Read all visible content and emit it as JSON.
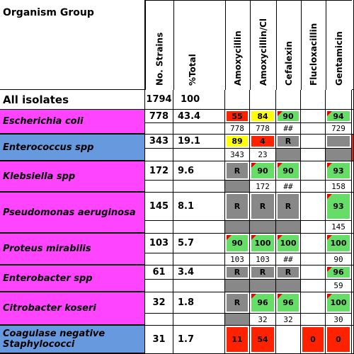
{
  "table": {
    "headers": {
      "organism": "Organism Group",
      "strains": "No. Strains",
      "pct": "%Total",
      "drugs": [
        "Amoxycillin",
        "Amoxycillin/Cl",
        "Cefalexin",
        "Flucloxacillin",
        "Gentamicin"
      ]
    },
    "all": {
      "name": "All isolates",
      "strains": 1794,
      "pct": 100
    },
    "rows": [
      {
        "name": "Escherichia coli",
        "group": "magenta",
        "strains": 778,
        "pct": 43.4,
        "cells": [
          {
            "text": "55",
            "fill": "red"
          },
          {
            "text": "84",
            "fill": "yellow"
          },
          {
            "text": "90",
            "fill": "green"
          },
          {
            "text": "",
            "fill": "none"
          },
          {
            "text": "94",
            "fill": "green"
          }
        ],
        "counts": [
          "778",
          "778",
          "##",
          "",
          "729"
        ]
      },
      {
        "name": "Enterococcus spp",
        "group": "blue",
        "strains": 343,
        "pct": 19.1,
        "cells": [
          {
            "text": "89",
            "fill": "yellow"
          },
          {
            "text": "4",
            "fill": "red"
          },
          {
            "text": "R",
            "fill": "gray"
          },
          {
            "text": "",
            "fill": "none"
          },
          {
            "text": "",
            "fill": "gray"
          }
        ],
        "counts": [
          "343",
          "23",
          "",
          "",
          ""
        ]
      },
      {
        "name": "Klebsiella spp",
        "group": "magenta",
        "strains": 172,
        "pct": 9.6,
        "cells": [
          {
            "text": "R",
            "fill": "gray"
          },
          {
            "text": "90",
            "fill": "green"
          },
          {
            "text": "90",
            "fill": "green"
          },
          {
            "text": "",
            "fill": "none"
          },
          {
            "text": "93",
            "fill": "green"
          }
        ],
        "counts": [
          "",
          "172",
          "##",
          "",
          "158"
        ]
      },
      {
        "name": "Pseudomonas aeruginosa",
        "group": "magenta",
        "strains": 145,
        "pct": 8.1,
        "cells": [
          {
            "text": "R",
            "fill": "gray"
          },
          {
            "text": "R",
            "fill": "gray"
          },
          {
            "text": "R",
            "fill": "gray"
          },
          {
            "text": "",
            "fill": "none"
          },
          {
            "text": "93",
            "fill": "green"
          }
        ],
        "counts": [
          "",
          "",
          "",
          "",
          "145"
        ]
      },
      {
        "name": "Proteus mirabilis",
        "group": "magenta",
        "strains": 103,
        "pct": 5.7,
        "cells": [
          {
            "text": "90",
            "fill": "green"
          },
          {
            "text": "100",
            "fill": "green"
          },
          {
            "text": "100",
            "fill": "green"
          },
          {
            "text": "",
            "fill": "none"
          },
          {
            "text": "100",
            "fill": "green"
          }
        ],
        "counts": [
          "103",
          "103",
          "##",
          "",
          "90"
        ]
      },
      {
        "name": "Enterobacter spp",
        "group": "magenta",
        "strains": 61,
        "pct": 3.4,
        "cells": [
          {
            "text": "R",
            "fill": "gray"
          },
          {
            "text": "R",
            "fill": "gray"
          },
          {
            "text": "R",
            "fill": "gray"
          },
          {
            "text": "",
            "fill": "none"
          },
          {
            "text": "96",
            "fill": "green"
          }
        ],
        "counts": [
          "",
          "",
          "",
          "",
          "59"
        ]
      },
      {
        "name": "Citrobacter koseri",
        "group": "magenta",
        "strains": 32,
        "pct": 1.8,
        "cells": [
          {
            "text": "R",
            "fill": "gray"
          },
          {
            "text": "96",
            "fill": "green"
          },
          {
            "text": "96",
            "fill": "green"
          },
          {
            "text": "",
            "fill": "none"
          },
          {
            "text": "100",
            "fill": "green"
          }
        ],
        "counts": [
          "",
          "32",
          "32",
          "",
          "30"
        ]
      },
      {
        "name": "Coagulase negative Staphylococci",
        "group": "blue",
        "strains": 31,
        "pct": 1.7,
        "cells": [
          {
            "text": "11",
            "fill": "red"
          },
          {
            "text": "54",
            "fill": "red"
          },
          {
            "text": "",
            "fill": "none"
          },
          {
            "text": "0",
            "fill": "red"
          },
          {
            "text": "0",
            "fill": "red"
          }
        ],
        "counts": [
          "",
          "",
          "",
          "",
          ""
        ]
      }
    ]
  }
}
